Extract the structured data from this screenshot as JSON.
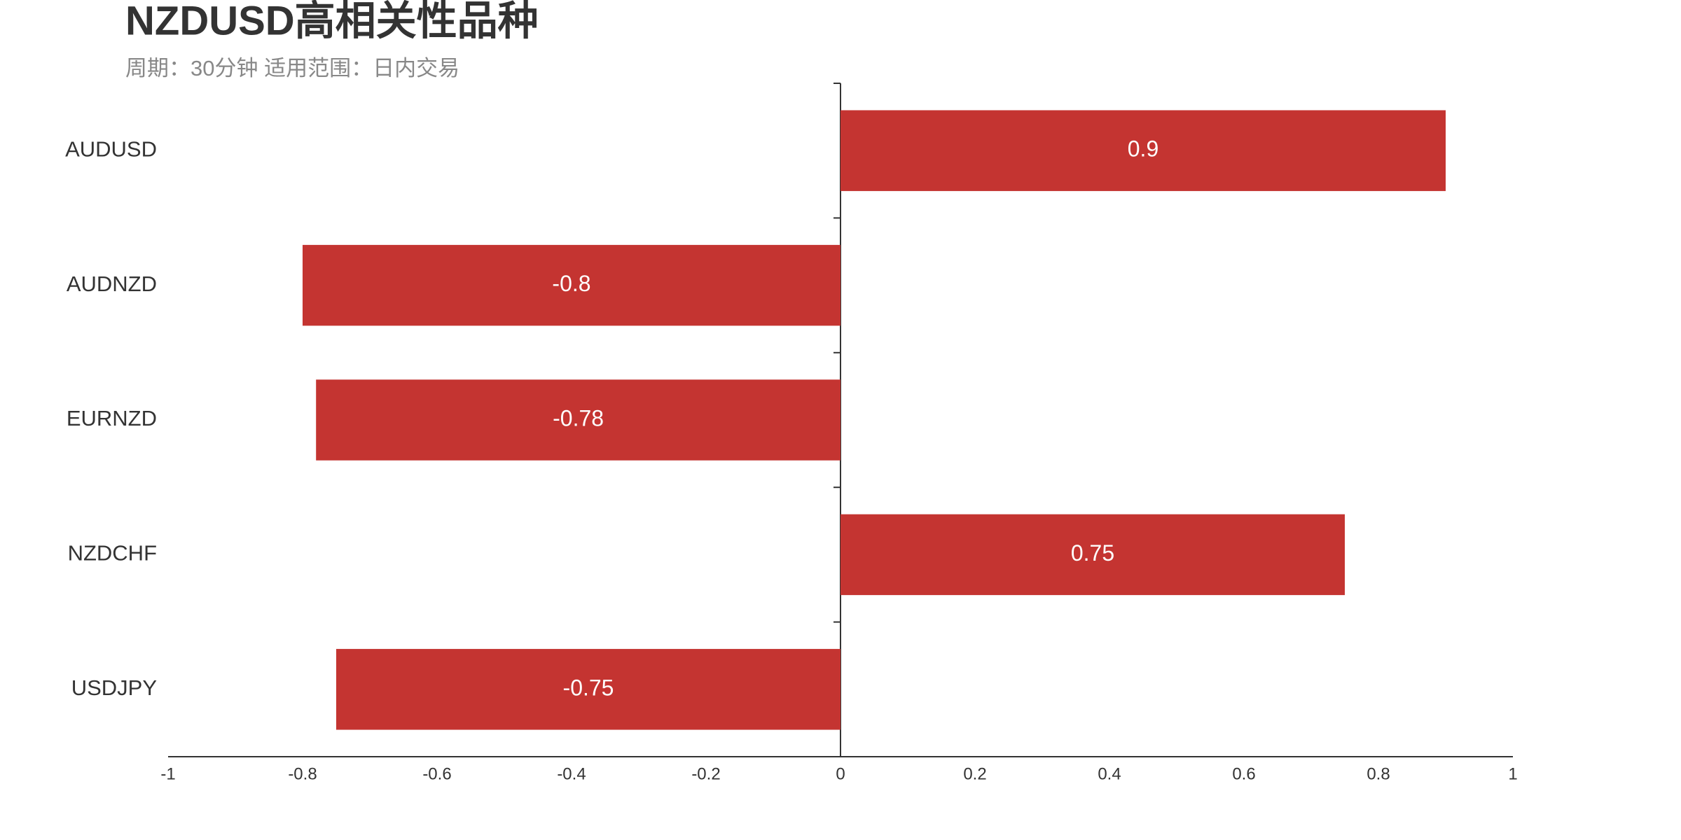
{
  "chart_data": {
    "type": "bar",
    "title": "NZDUSD高相关性品种",
    "subtitle": "周期：30分钟 适用范围：日内交易",
    "categories": [
      "AUDUSD",
      "AUDNZD",
      "EURNZD",
      "NZDCHF",
      "USDJPY"
    ],
    "values": [
      0.9,
      -0.8,
      -0.78,
      0.75,
      -0.75
    ],
    "color": "#c43431",
    "xlim": [
      -1,
      1
    ],
    "xticks": [
      -1,
      -0.8,
      -0.6,
      -0.4,
      -0.2,
      0,
      0.2,
      0.4,
      0.6,
      0.8,
      1
    ]
  }
}
